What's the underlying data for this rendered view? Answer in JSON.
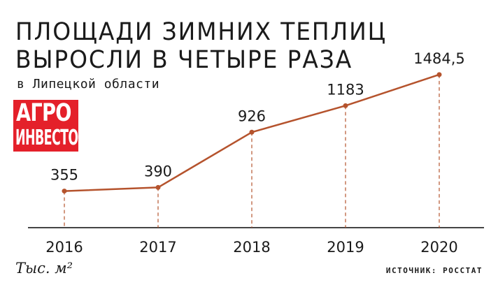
{
  "header": {
    "title_line1": "ПЛОЩАДИ ЗИМНИХ ТЕПЛИЦ",
    "title_line2": "ВЫРОСЛИ В ЧЕТЫРЕ РАЗА",
    "subtitle": "в Липецкой области"
  },
  "logo": {
    "line1": "АГРО",
    "line2": "ИНВЕСТОР"
  },
  "footer": {
    "unit": "Тыс. м²",
    "source": "ИСТОЧНИК: РОССТАТ"
  },
  "colors": {
    "line": "#b5532d",
    "accent": "#e4202a",
    "axis": "#444444"
  },
  "chart_data": {
    "type": "line",
    "title": "ПЛОЩАДИ ЗИМНИХ ТЕПЛИЦ ВЫРОСЛИ В ЧЕТЫРЕ РАЗА",
    "subtitle": "в Липецкой области",
    "x": [
      "2016",
      "2017",
      "2018",
      "2019",
      "2020"
    ],
    "y": [
      355,
      390,
      926,
      1183,
      1484.5
    ],
    "data_labels": [
      "355",
      "390",
      "926",
      "1183",
      "1484,5"
    ],
    "ylabel": "Тыс. м²",
    "xlabel": "",
    "ylim": [
      0,
      1700
    ],
    "grid": false,
    "legend": "none"
  }
}
